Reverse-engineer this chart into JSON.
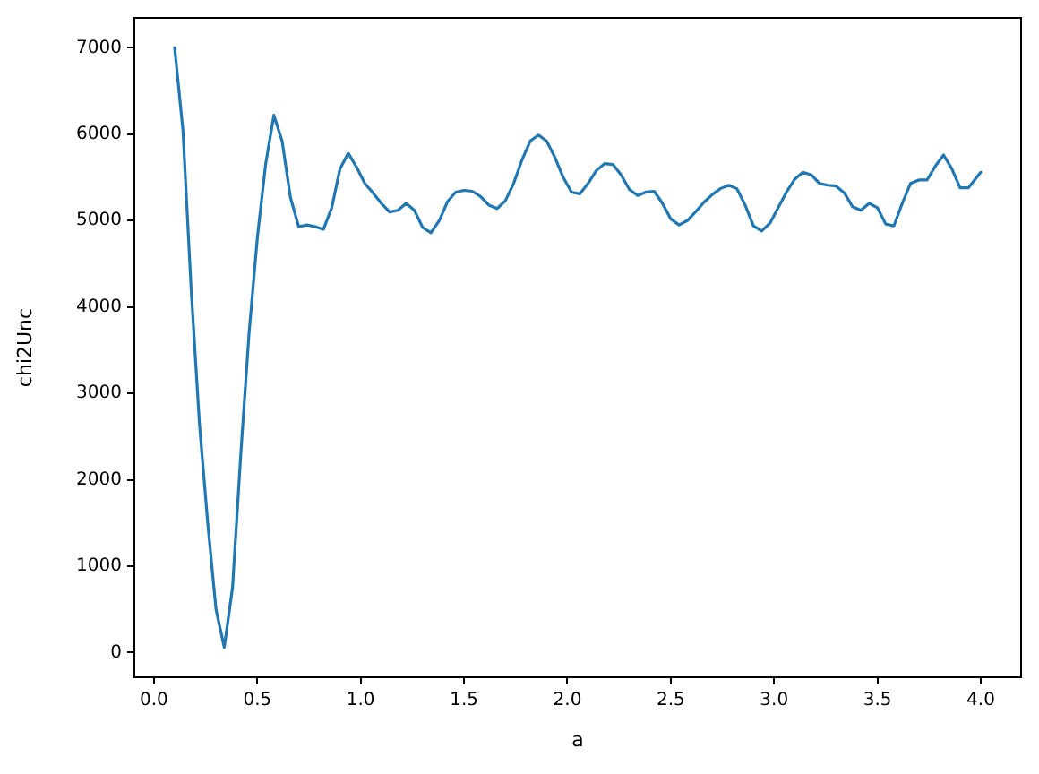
{
  "chart_data": {
    "type": "line",
    "xlabel": "a",
    "ylabel": "chi2Unc",
    "xlim": [
      -0.095,
      4.195
    ],
    "ylim": [
      -287,
      7347
    ],
    "xticks": [
      {
        "value": 0,
        "label": "0.0"
      },
      {
        "value": 0.5,
        "label": "0.5"
      },
      {
        "value": 1,
        "label": "1.0"
      },
      {
        "value": 1.5,
        "label": "1.5"
      },
      {
        "value": 2,
        "label": "2.0"
      },
      {
        "value": 2.5,
        "label": "2.5"
      },
      {
        "value": 3,
        "label": "3.0"
      },
      {
        "value": 3.5,
        "label": "3.5"
      },
      {
        "value": 4,
        "label": "4.0"
      }
    ],
    "yticks": [
      0,
      1000,
      2000,
      3000,
      4000,
      5000,
      6000,
      7000
    ],
    "grid": false,
    "legend": false,
    "marker": "none",
    "line_style": "solid",
    "series": [
      {
        "color": "#1f77b4",
        "x": [
          0.1,
          0.14,
          0.18,
          0.22,
          0.26,
          0.3,
          0.34,
          0.38,
          0.42,
          0.46,
          0.5,
          0.54,
          0.58,
          0.62,
          0.66,
          0.7,
          0.74,
          0.78,
          0.82,
          0.86,
          0.9,
          0.94,
          0.98,
          1.02,
          1.06,
          1.1,
          1.14,
          1.18,
          1.22,
          1.26,
          1.3,
          1.34,
          1.38,
          1.42,
          1.46,
          1.5,
          1.54,
          1.58,
          1.62,
          1.66,
          1.7,
          1.74,
          1.78,
          1.82,
          1.86,
          1.9,
          1.94,
          1.98,
          2.02,
          2.06,
          2.1,
          2.14,
          2.18,
          2.22,
          2.26,
          2.3,
          2.34,
          2.38,
          2.42,
          2.46,
          2.5,
          2.54,
          2.58,
          2.62,
          2.66,
          2.7,
          2.74,
          2.78,
          2.82,
          2.86,
          2.9,
          2.94,
          2.98,
          3.02,
          3.06,
          3.1,
          3.14,
          3.18,
          3.22,
          3.26,
          3.3,
          3.34,
          3.38,
          3.42,
          3.46,
          3.5,
          3.54,
          3.58,
          3.62,
          3.66,
          3.7,
          3.74,
          3.78,
          3.82,
          3.86,
          3.9,
          3.94,
          4.0
        ],
        "values": [
          7000,
          6050,
          4200,
          2650,
          1500,
          500,
          60,
          750,
          2300,
          3700,
          4800,
          5650,
          6220,
          5920,
          5270,
          4930,
          4950,
          4930,
          4900,
          5150,
          5600,
          5780,
          5620,
          5430,
          5320,
          5200,
          5100,
          5120,
          5200,
          5120,
          4920,
          4860,
          5000,
          5220,
          5330,
          5350,
          5340,
          5280,
          5180,
          5140,
          5230,
          5430,
          5700,
          5920,
          5990,
          5920,
          5730,
          5500,
          5330,
          5310,
          5430,
          5580,
          5660,
          5650,
          5530,
          5360,
          5290,
          5330,
          5340,
          5200,
          5020,
          4950,
          5000,
          5100,
          5210,
          5300,
          5370,
          5410,
          5370,
          5180,
          4940,
          4880,
          4970,
          5150,
          5330,
          5480,
          5560,
          5530,
          5430,
          5410,
          5400,
          5320,
          5160,
          5120,
          5200,
          5150,
          4960,
          4940,
          5200,
          5430,
          5470,
          5470,
          5630,
          5760,
          5600,
          5380,
          5380,
          5560
        ]
      }
    ]
  }
}
